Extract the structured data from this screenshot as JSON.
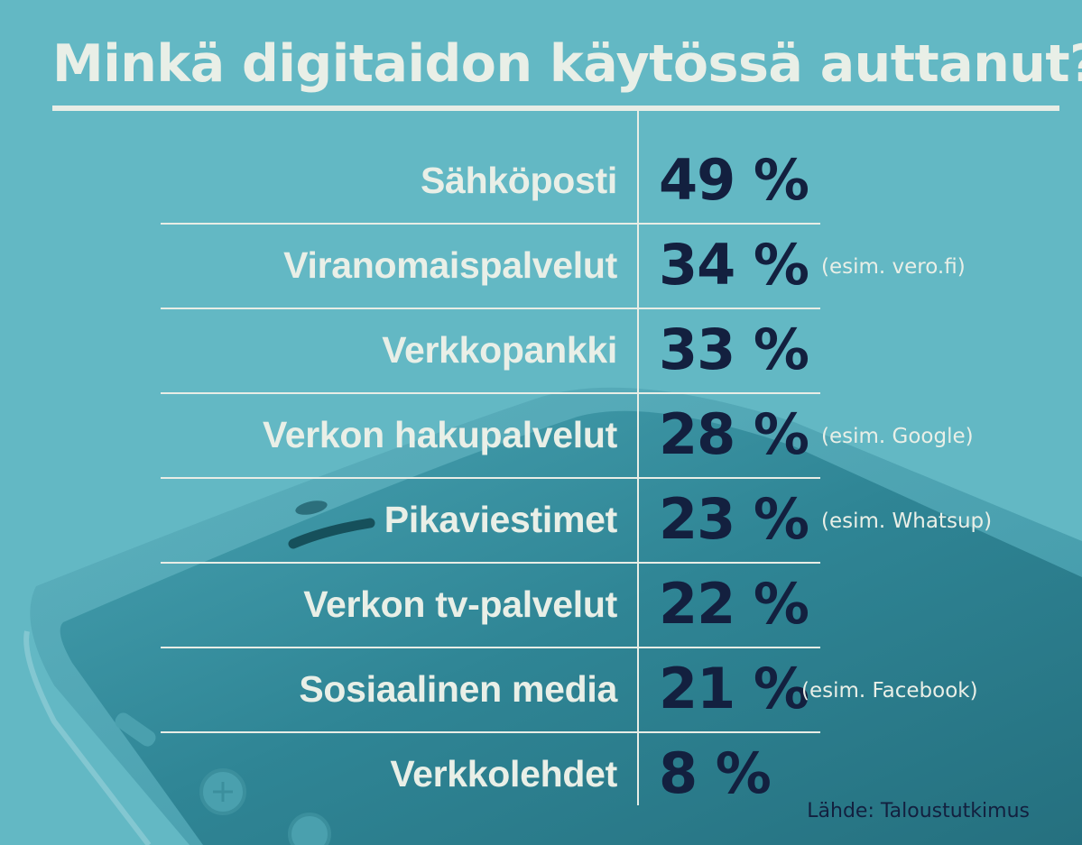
{
  "chart_data": {
    "type": "table",
    "title": "Minkä digitaidon käytössä auttanut?",
    "unit": "%",
    "rows": [
      {
        "category": "Sähköposti",
        "value": 49,
        "label": "49 %",
        "note": ""
      },
      {
        "category": "Viranomaispalvelut",
        "value": 34,
        "label": "34 %",
        "note": "(esim. vero.fi)"
      },
      {
        "category": "Verkkopankki",
        "value": 33,
        "label": "33 %",
        "note": ""
      },
      {
        "category": "Verkon hakupalvelut",
        "value": 28,
        "label": "28 %",
        "note": "(esim. Google)"
      },
      {
        "category": "Pikaviestimet",
        "value": 23,
        "label": "23 %",
        "note": "(esim. Whatsup)"
      },
      {
        "category": "Verkon tv-palvelut",
        "value": 22,
        "label": "22 %",
        "note": ""
      },
      {
        "category": "Sosiaalinen media",
        "value": 21,
        "label": "21 %",
        "note": "(esim. Facebook)"
      },
      {
        "category": "Verkkolehdet",
        "value": 8,
        "label": "8 %",
        "note": ""
      }
    ],
    "source": "Lähde: Taloustutkimus"
  },
  "colors": {
    "background": "#63b8c4",
    "text_light": "#e9efe7",
    "value_dark": "#13203f"
  },
  "icons": [
    "smartphone-background-image"
  ]
}
